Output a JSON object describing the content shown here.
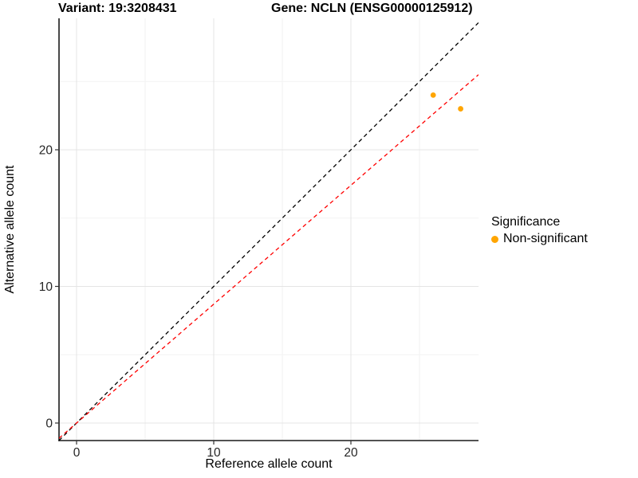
{
  "chart_data": {
    "type": "scatter",
    "title_left": "Variant: 19:3208431",
    "title_right": "Gene: NCLN (ENSG00000125912)",
    "xlabel": "Reference allele count",
    "ylabel": "Alternative allele count",
    "x_ticks": [
      0,
      10,
      20
    ],
    "y_ticks": [
      0,
      10,
      20
    ],
    "x_minor": [
      5,
      15,
      25
    ],
    "y_minor": [
      5,
      15,
      25
    ],
    "xlim": [
      -1.3,
      29.3
    ],
    "ylim": [
      -1.3,
      29.6
    ],
    "grid": "major+minor",
    "legend_position": "right",
    "point_color": "#FFA500",
    "points": [
      {
        "x": 26,
        "y": 24,
        "significance": "Non-significant"
      },
      {
        "x": 28,
        "y": 23,
        "significance": "Non-significant"
      }
    ],
    "lines": [
      {
        "name": "identity",
        "slope": 1.0,
        "intercept": 0,
        "color": "#000000",
        "style": "dashed"
      },
      {
        "name": "fitted-proportion",
        "slope": 0.87,
        "intercept": 0,
        "color": "#FF0000",
        "style": "dashed"
      }
    ],
    "legend": {
      "title": "Significance",
      "entries": [
        {
          "label": "Non-significant",
          "color": "#FFA500",
          "marker": "circle"
        }
      ]
    },
    "colors": {
      "axis_line": "#1a1a1a",
      "grid_major": "#e4e4e4",
      "grid_minor": "#f2f2f2",
      "tick": "#333333"
    }
  }
}
